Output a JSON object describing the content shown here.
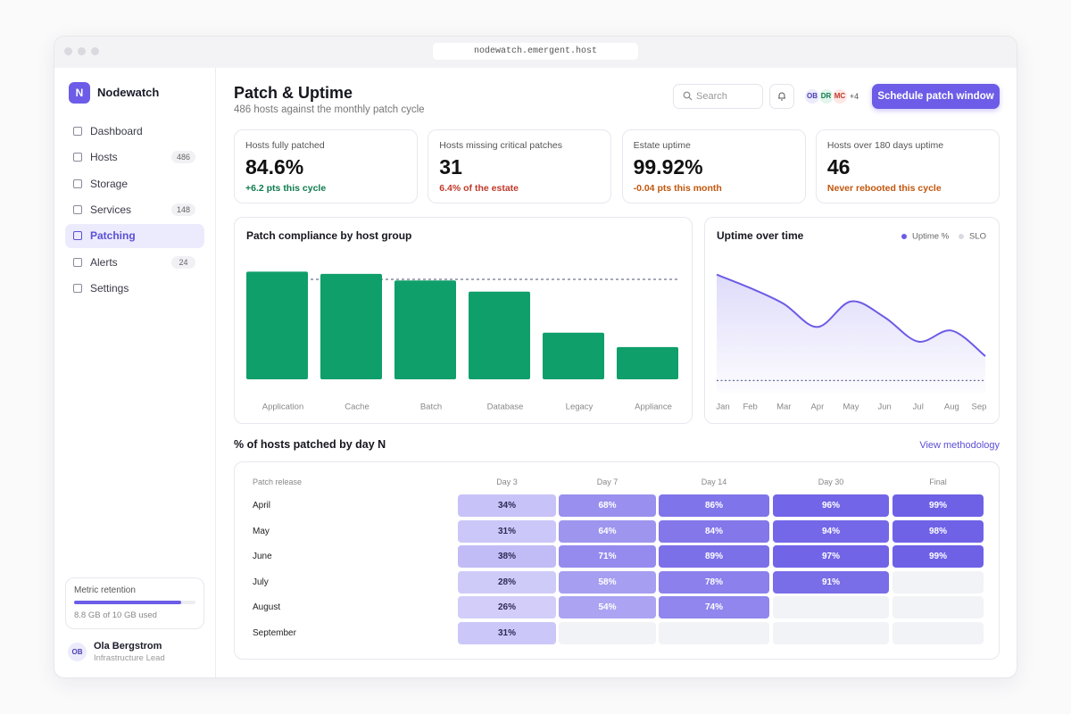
{
  "browser": {
    "url": "nodewatch.emergent.host"
  },
  "sidebar": {
    "logo": "N",
    "brand": "Nodewatch",
    "nav": [
      {
        "label": "Dashboard"
      },
      {
        "label": "Hosts",
        "count": 486
      },
      {
        "label": "Storage"
      },
      {
        "label": "Services",
        "count": 148
      },
      {
        "label": "Patching",
        "active": true
      },
      {
        "label": "Alerts",
        "count": 24
      },
      {
        "label": "Settings"
      }
    ],
    "retention": {
      "title": "Metric retention",
      "usage": {
        "value": 8.8,
        "max": 10,
        "label": "8.8 GB of 10 GB used"
      }
    },
    "user": {
      "initials": "OB",
      "name": "Ola Bergstrom",
      "role": "Infrastructure Lead"
    }
  },
  "header": {
    "title": "Patch & Uptime",
    "subtitle": "486 hosts against the monthly patch cycle",
    "search_placeholder": "Search",
    "avatars": [
      "OB",
      "DR",
      "MC"
    ],
    "more_avatars": "+4",
    "action": "Schedule patch window"
  },
  "kpis": [
    {
      "label": "Hosts fully patched",
      "value": "84.6%",
      "delta": "+6.2 pts this cycle",
      "tone": "positive"
    },
    {
      "label": "Hosts missing critical patches",
      "value": "31",
      "delta": "6.4% of the estate",
      "tone": "negative"
    },
    {
      "label": "Estate uptime",
      "value": "99.92%",
      "delta": "-0.04 pts this month",
      "tone": "warning"
    },
    {
      "label": "Hosts over 180 days uptime",
      "value": "46",
      "delta": "Never rebooted this cycle",
      "tone": "warning"
    }
  ],
  "chart_data": [
    {
      "type": "bar",
      "title": "Patch compliance by host group",
      "categories": [
        "Application",
        "Cache",
        "Batch",
        "Database",
        "Legacy",
        "Appliance"
      ],
      "values": [
        97,
        95,
        89,
        79,
        42,
        29
      ],
      "color": "#0f9f6a",
      "target": 90,
      "ylim": [
        0,
        100
      ]
    },
    {
      "type": "line",
      "title": "Uptime over time",
      "categories": [
        "Jan",
        "Feb",
        "Mar",
        "Apr",
        "May",
        "Jun",
        "Jul",
        "Aug",
        "Sep"
      ],
      "series": [
        {
          "name": "Uptime %",
          "color": "#6c5ce7",
          "values": [
            99.987,
            99.976,
            99.963,
            99.944,
            99.965,
            99.952,
            99.932,
            99.941,
            99.92
          ]
        },
        {
          "name": "SLO",
          "color": "#6a6d9a",
          "values": [
            99.9,
            99.9,
            99.9,
            99.9,
            99.9,
            99.9,
            99.9,
            99.9,
            99.9
          ]
        }
      ],
      "ylim": [
        99.89,
        100.0
      ]
    }
  ],
  "heatmap": {
    "title": "% of hosts patched by day N",
    "link": "View methodology",
    "columns": [
      "Patch release",
      "Day 3",
      "Day 7",
      "Day 14",
      "Day 30",
      "Final"
    ],
    "rows": [
      {
        "release": "April",
        "values": [
          34,
          68,
          86,
          96,
          99
        ],
        "value_labels": [
          "34%",
          "68%",
          "86%",
          "96%",
          "99%"
        ]
      },
      {
        "release": "May",
        "values": [
          31,
          64,
          84,
          94,
          98
        ],
        "value_labels": [
          "31%",
          "64%",
          "84%",
          "94%",
          "98%"
        ]
      },
      {
        "release": "June",
        "values": [
          38,
          71,
          89,
          97,
          99
        ],
        "value_labels": [
          "38%",
          "71%",
          "89%",
          "97%",
          "99%"
        ]
      },
      {
        "release": "July",
        "values": [
          28,
          58,
          78,
          91,
          null
        ],
        "value_labels": [
          "28%",
          "58%",
          "78%",
          "91%",
          null
        ]
      },
      {
        "release": "August",
        "values": [
          26,
          54,
          74,
          null,
          null
        ],
        "value_labels": [
          "26%",
          "54%",
          "74%",
          null,
          null
        ]
      },
      {
        "release": "September",
        "values": [
          31,
          null,
          null,
          null,
          null
        ],
        "value_labels": [
          "31%",
          null,
          null,
          null,
          null
        ]
      }
    ]
  }
}
